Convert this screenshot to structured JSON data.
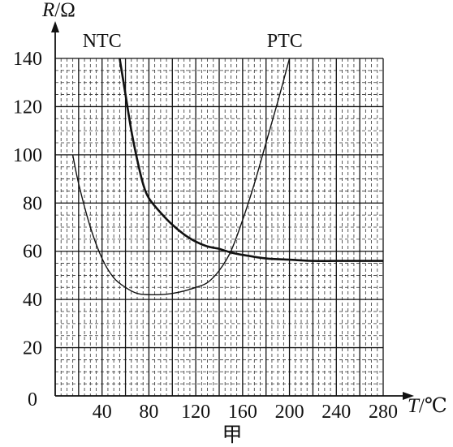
{
  "chart_data": {
    "type": "line",
    "x_label": {
      "symbol": "T",
      "unit": "/℃"
    },
    "y_label": {
      "symbol": "R",
      "unit": "/Ω"
    },
    "xlim": [
      0,
      280
    ],
    "ylim": [
      0,
      140
    ],
    "x_ticks": [
      40,
      80,
      120,
      160,
      200,
      240,
      280
    ],
    "y_ticks": [
      20,
      40,
      60,
      80,
      100,
      120,
      140
    ],
    "origin_label": "0",
    "grid": true,
    "caption": "甲",
    "series": [
      {
        "name": "NTC",
        "x": [
          55,
          60,
          65,
          70,
          75,
          80,
          90,
          100,
          110,
          120,
          130,
          140,
          150,
          160,
          180,
          200,
          220,
          240,
          260,
          280
        ],
        "y": [
          140,
          125,
          110,
          98,
          88,
          82,
          76,
          71,
          67,
          64,
          62,
          61,
          59.5,
          58.5,
          57,
          56.5,
          56,
          56,
          56,
          56
        ]
      },
      {
        "name": "PTC",
        "x": [
          15,
          20,
          30,
          40,
          50,
          60,
          70,
          80,
          90,
          100,
          110,
          120,
          130,
          140,
          150,
          160,
          170,
          180,
          190,
          200
        ],
        "y": [
          100,
          88,
          70,
          57,
          49,
          45,
          42.5,
          42,
          42,
          42.5,
          43.5,
          45,
          47,
          52,
          60,
          73,
          88,
          105,
          122,
          140
        ]
      }
    ]
  }
}
